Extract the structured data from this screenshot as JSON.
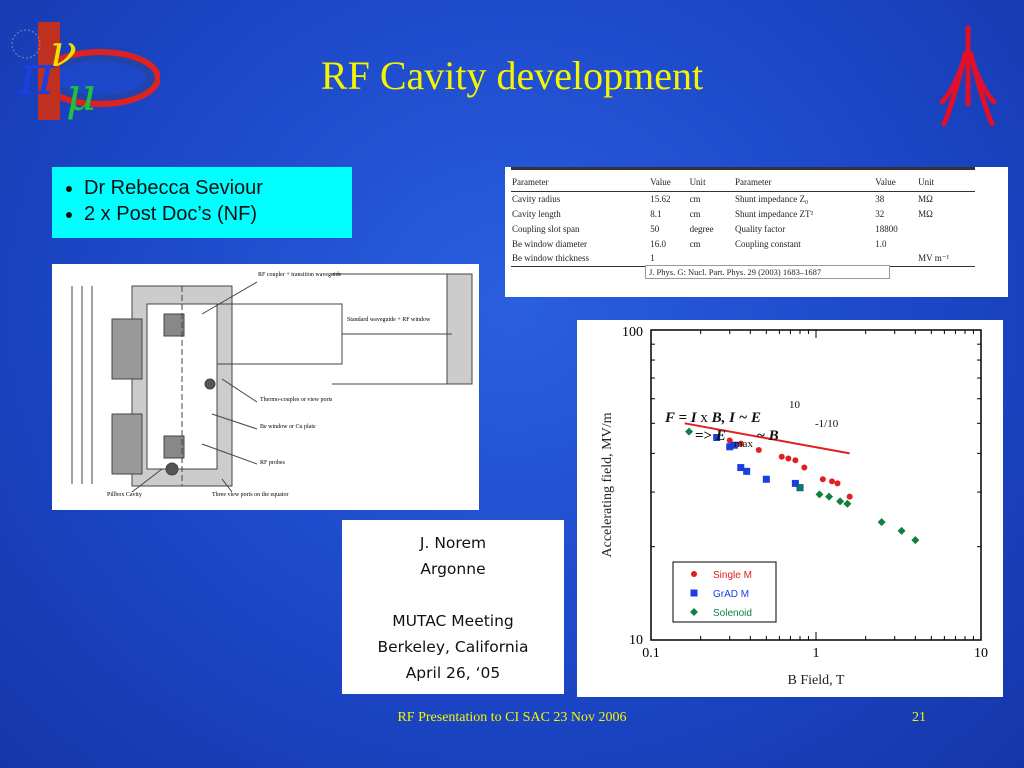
{
  "slide": {
    "title": "RF Cavity development",
    "footer": "RF Presentation to CI SAC 23 Nov 2006",
    "page_number": "21"
  },
  "bullets": [
    "Dr Rebecca Seviour",
    "2 x Post Doc’s  (NF)"
  ],
  "param_table": {
    "headers": [
      "Parameter",
      "Value",
      "Unit",
      "Parameter",
      "Value",
      "Unit"
    ],
    "rows": [
      [
        "Cavity radius",
        "15.62",
        "cm",
        "Shunt impedance Z₀",
        "38",
        "MΩ"
      ],
      [
        "Cavity length",
        "8.1",
        "cm",
        "Shunt impedance ZT²",
        "32",
        "MΩ"
      ],
      [
        "Coupling slot span",
        "50",
        "degree",
        "Quality factor",
        "18800",
        ""
      ],
      [
        "Be window diameter",
        "16.0",
        "cm",
        "Coupling constant",
        "1.0",
        ""
      ],
      [
        "Be window thickness",
        "1",
        "",
        "",
        "",
        "MV m⁻¹"
      ]
    ],
    "citation": "J. Phys. G: Nucl. Part. Phys. 29 (2003) 1683–1687"
  },
  "drawing": {
    "labels": [
      "RF coupler + transition waveguide",
      "Standard waveguide + RF window",
      "Thermo-couples or view ports",
      "Be window or Cu plate",
      "RF probes",
      "Pillbox Cavity",
      "Three view ports on the equator"
    ]
  },
  "reference": [
    "J. Norem",
    "Argonne",
    "",
    "MUTAC Meeting",
    "Berkeley, California",
    "April 26, ‘05"
  ],
  "chart_data": {
    "type": "scatter",
    "xlabel": "B Field, T",
    "ylabel": "Accelerating field, MV/m",
    "x_scale": "log",
    "y_scale": "log",
    "xlim": [
      0.1,
      10
    ],
    "ylim": [
      10,
      100
    ],
    "x_ticks": [
      "0.1",
      "1",
      "10"
    ],
    "y_ticks": [
      "10",
      "100"
    ],
    "legend_position": "bottom-center",
    "annotation": "F = I x B,   I ~ E^10  => E_max ~ B^-1/10",
    "fit_line": {
      "x": [
        0.16,
        1.6
      ],
      "y": [
        50,
        40
      ],
      "color": "#e02020"
    },
    "series": [
      {
        "name": "Single M",
        "color": "#e02020",
        "marker": "circle",
        "x": [
          0.3,
          0.35,
          0.45,
          0.62,
          0.68,
          0.75,
          0.85,
          1.1,
          1.25,
          1.35,
          1.6
        ],
        "y": [
          44,
          43,
          41,
          39,
          38.5,
          38,
          36,
          33,
          32.5,
          32,
          29
        ]
      },
      {
        "name": "GrAD M",
        "color": "#1a3ee0",
        "marker": "square",
        "x": [
          0.25,
          0.3,
          0.32,
          0.35,
          0.38,
          0.5,
          0.75,
          0.8
        ],
        "y": [
          45,
          42,
          42.5,
          36,
          35,
          33,
          32,
          31
        ]
      },
      {
        "name": "Solenoid",
        "color": "#108040",
        "marker": "diamond",
        "x": [
          0.17,
          0.8,
          1.05,
          1.2,
          1.4,
          1.55,
          2.5,
          3.3,
          4.0
        ],
        "y": [
          47,
          31,
          29.5,
          29,
          28,
          27.5,
          24,
          22.5,
          21
        ]
      }
    ]
  }
}
